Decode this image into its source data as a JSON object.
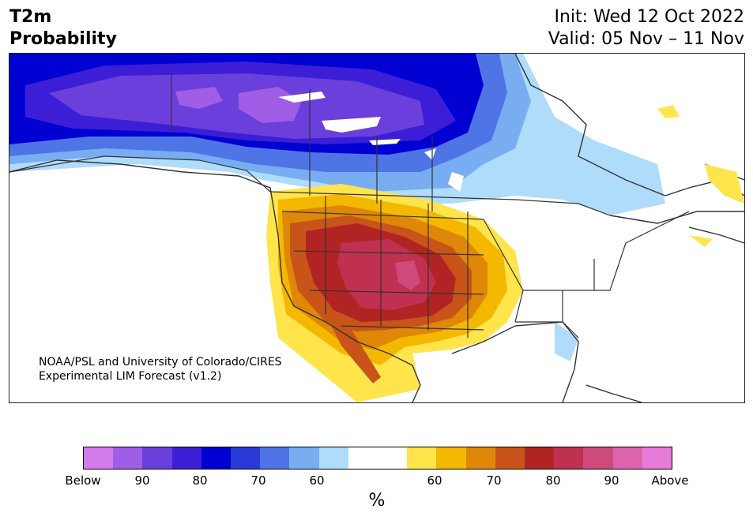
{
  "header": {
    "title_line1": "T2m",
    "title_line2": "Probability",
    "init": "Init: Wed 12 Oct 2022",
    "valid": "Valid: 05 Nov – 11 Nov"
  },
  "credit": {
    "line1": "NOAA/PSL and University of Colorado/CIRES",
    "line2": "Experimental LIM Forecast (v1.2)"
  },
  "colorbar": {
    "colors": [
      "#d57cec",
      "#a05de6",
      "#6a3fdc",
      "#3b1ed6",
      "#0000d2",
      "#2a3ad6",
      "#4f74e6",
      "#79adf2",
      "#aedcfa",
      "#ffffff",
      "#ffffff",
      "#ffe44c",
      "#f4b800",
      "#de8708",
      "#c8541a",
      "#b22424",
      "#c03050",
      "#cd4a7a",
      "#dc64aa",
      "#e87ad9"
    ],
    "tick_labels": [
      "Below",
      "90",
      "80",
      "70",
      "60",
      "60",
      "70",
      "80",
      "90",
      "Above"
    ],
    "unit": "%"
  }
}
